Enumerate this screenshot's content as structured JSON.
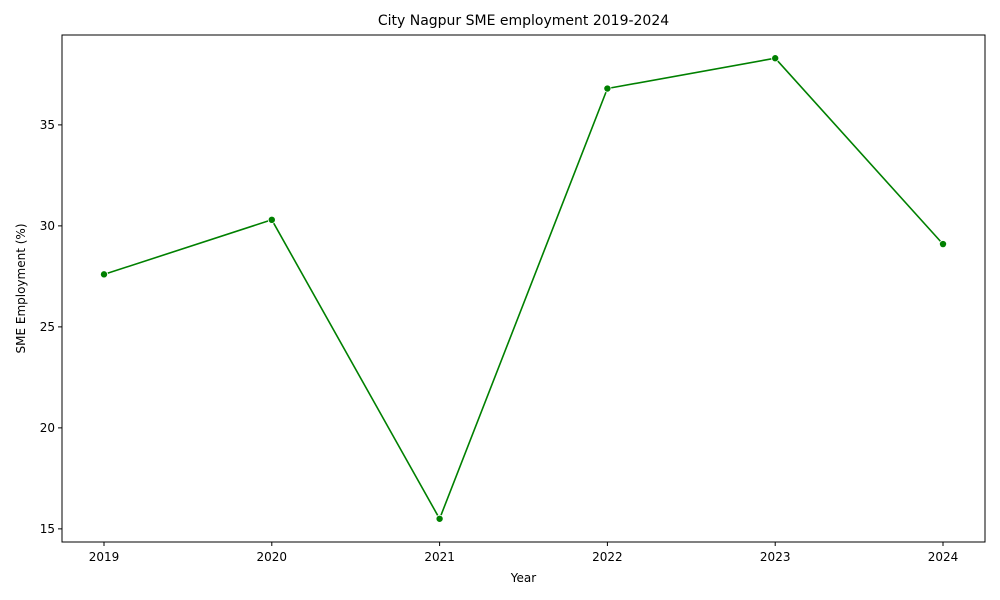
{
  "chart_data": {
    "type": "line",
    "title": "City Nagpur SME employment 2019-2024",
    "xlabel": "Year",
    "ylabel": "SME Employment (%)",
    "x": [
      "2019",
      "2020",
      "2021",
      "2022",
      "2023",
      "2024"
    ],
    "series": [
      {
        "values": [
          27.6,
          30.3,
          15.5,
          36.8,
          38.3,
          29.1
        ],
        "color": "#008000",
        "marker": "circle"
      }
    ],
    "yticks": [
      15,
      20,
      25,
      30,
      35
    ],
    "ylim": [
      14.35,
      39.45
    ],
    "grid": false,
    "legend": "none"
  }
}
